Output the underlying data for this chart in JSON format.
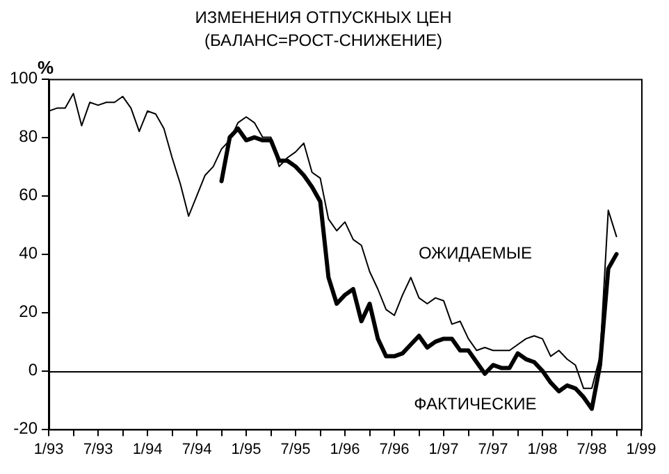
{
  "chart_data": {
    "type": "line",
    "title": "ИЗМЕНЕНИЯ ОТПУСКНЫХ ЦЕН",
    "subtitle": "(БАЛАНС=РОСТ-СНИЖЕНИЕ)",
    "ylabel": "%",
    "xlim": [
      "1993-01",
      "1999-01"
    ],
    "xticks": [
      {
        "value": "1993-01",
        "label": "1/93"
      },
      {
        "value": "1993-04",
        "label": null
      },
      {
        "value": "1993-07",
        "label": "7/93"
      },
      {
        "value": "1993-10",
        "label": null
      },
      {
        "value": "1994-01",
        "label": "1/94"
      },
      {
        "value": "1994-04",
        "label": null
      },
      {
        "value": "1994-07",
        "label": "7/94"
      },
      {
        "value": "1994-10",
        "label": null
      },
      {
        "value": "1995-01",
        "label": "1/95"
      },
      {
        "value": "1995-04",
        "label": null
      },
      {
        "value": "1995-07",
        "label": "7/95"
      },
      {
        "value": "1995-10",
        "label": null
      },
      {
        "value": "1996-01",
        "label": "1/96"
      },
      {
        "value": "1996-04",
        "label": null
      },
      {
        "value": "1996-07",
        "label": "7/96"
      },
      {
        "value": "1996-10",
        "label": null
      },
      {
        "value": "1997-01",
        "label": "1/97"
      },
      {
        "value": "1997-04",
        "label": null
      },
      {
        "value": "1997-07",
        "label": "7/97"
      },
      {
        "value": "1997-10",
        "label": null
      },
      {
        "value": "1998-01",
        "label": "1/98"
      },
      {
        "value": "1998-04",
        "label": null
      },
      {
        "value": "1998-07",
        "label": "7/98"
      },
      {
        "value": "1998-10",
        "label": null
      },
      {
        "value": "1999-01",
        "label": "1/99"
      }
    ],
    "ylim": [
      -20,
      100
    ],
    "yticks": [
      -20,
      0,
      20,
      40,
      60,
      80,
      100
    ],
    "ref_lines": [
      {
        "axis": "y",
        "value": 0,
        "color": "#000000"
      }
    ],
    "grid": false,
    "legend": false,
    "marker": "none",
    "line_style": "solid",
    "series": [
      {
        "name": "ОЖИДАЕМЫЕ",
        "color": "#000000",
        "x": [
          "1993-01",
          "1993-02",
          "1993-03",
          "1993-04",
          "1993-05",
          "1993-06",
          "1993-07",
          "1993-08",
          "1993-09",
          "1993-10",
          "1993-11",
          "1993-12",
          "1994-01",
          "1994-02",
          "1994-03",
          "1994-04",
          "1994-05",
          "1994-06",
          "1994-07",
          "1994-08",
          "1994-09",
          "1994-10",
          "1994-11",
          "1994-12",
          "1995-01",
          "1995-02",
          "1995-03",
          "1995-04",
          "1995-05",
          "1995-06",
          "1995-07",
          "1995-08",
          "1995-09",
          "1995-10",
          "1995-11",
          "1995-12",
          "1996-01",
          "1996-02",
          "1996-03",
          "1996-04",
          "1996-05",
          "1996-06",
          "1996-07",
          "1996-08",
          "1996-09",
          "1996-10",
          "1996-11",
          "1996-12",
          "1997-01",
          "1997-02",
          "1997-03",
          "1997-04",
          "1997-05",
          "1997-06",
          "1997-07",
          "1997-08",
          "1997-09",
          "1997-10",
          "1997-11",
          "1997-12",
          "1998-01",
          "1998-02",
          "1998-03",
          "1998-04",
          "1998-05",
          "1998-06",
          "1998-07",
          "1998-08",
          "1998-09",
          "1998-10"
        ],
        "values": [
          89,
          90,
          90,
          95,
          84,
          92,
          91,
          92,
          92,
          94,
          90,
          82,
          89,
          88,
          83,
          73,
          64,
          53,
          60,
          67,
          70,
          76,
          79,
          85,
          87,
          85,
          80,
          80,
          70,
          73,
          75,
          78,
          68,
          66,
          52,
          48,
          51,
          45,
          43,
          34,
          28,
          21,
          19,
          26,
          32,
          25,
          23,
          25,
          24,
          16,
          17,
          11,
          7,
          8,
          7,
          7,
          7,
          9,
          11,
          12,
          11,
          5,
          7,
          4,
          2,
          -6,
          -6,
          5,
          55,
          46
        ]
      },
      {
        "name": "ФАКТИЧЕСКИЕ",
        "color": "#000000",
        "x": [
          "1994-10",
          "1994-11",
          "1994-12",
          "1995-01",
          "1995-02",
          "1995-03",
          "1995-04",
          "1995-05",
          "1995-06",
          "1995-07",
          "1995-08",
          "1995-09",
          "1995-10",
          "1995-11",
          "1995-12",
          "1996-01",
          "1996-02",
          "1996-03",
          "1996-04",
          "1996-05",
          "1996-06",
          "1996-07",
          "1996-08",
          "1996-09",
          "1996-10",
          "1996-11",
          "1996-12",
          "1997-01",
          "1997-02",
          "1997-03",
          "1997-04",
          "1997-05",
          "1997-06",
          "1997-07",
          "1997-08",
          "1997-09",
          "1997-10",
          "1997-11",
          "1997-12",
          "1998-01",
          "1998-02",
          "1998-03",
          "1998-04",
          "1998-05",
          "1998-06",
          "1998-07",
          "1998-08",
          "1998-09",
          "1998-10"
        ],
        "values": [
          65,
          80,
          83,
          79,
          80,
          79,
          79,
          72,
          72,
          70,
          67,
          63,
          58,
          32,
          23,
          26,
          28,
          17,
          23,
          11,
          5,
          5,
          6,
          9,
          12,
          8,
          10,
          11,
          11,
          7,
          7,
          3,
          -1,
          2,
          1,
          1,
          6,
          4,
          3,
          0,
          -4,
          -7,
          -5,
          -6,
          -9,
          -13,
          2,
          35,
          40
        ]
      }
    ]
  }
}
